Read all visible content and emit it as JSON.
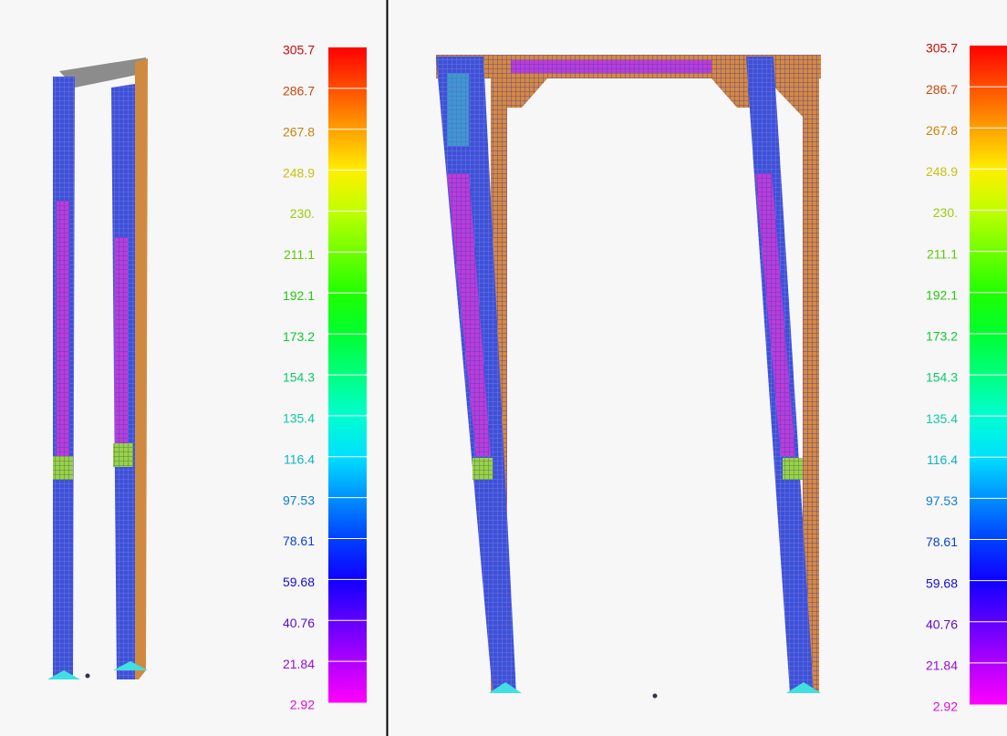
{
  "panels": [
    {
      "legend": [
        "305.7",
        "286.7",
        "267.8",
        "248.9",
        "230.",
        "211.1",
        "192.1",
        "173.2",
        "154.3",
        "135.4",
        "116.4",
        "97.53",
        "78.61",
        "59.68",
        "40.76",
        "21.84",
        "2.92"
      ]
    },
    {
      "legend": [
        "305.7",
        "286.7",
        "267.8",
        "248.9",
        "230.",
        "211.1",
        "192.1",
        "173.2",
        "154.3",
        "135.4",
        "116.4",
        "97.53",
        "78.61",
        "59.68",
        "40.76",
        "21.84",
        "2.92"
      ]
    }
  ]
}
